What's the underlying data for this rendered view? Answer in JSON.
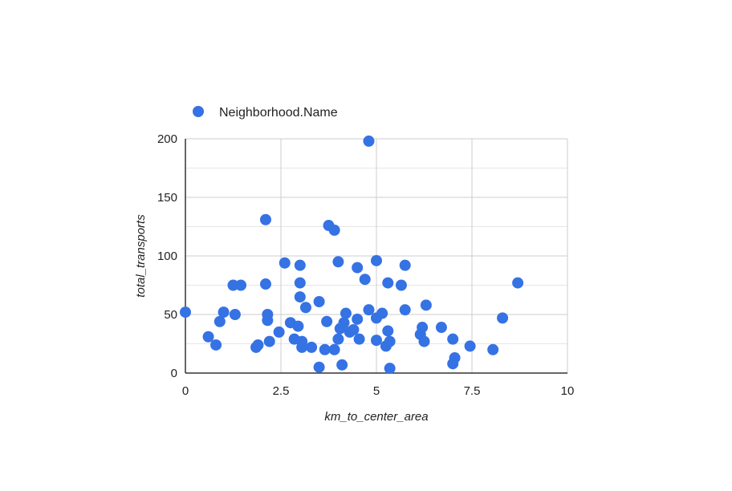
{
  "chart_data": {
    "type": "scatter",
    "xlabel": "km_to_center_area",
    "ylabel": "total_transports",
    "xlim": [
      0,
      10
    ],
    "ylim": [
      0,
      200
    ],
    "x_ticks": [
      0,
      2.5,
      5,
      7.5,
      10
    ],
    "x_tick_labels": [
      "0",
      "2.5",
      "5",
      "7.5",
      "10"
    ],
    "y_ticks": [
      0,
      50,
      100,
      150,
      200
    ],
    "y_tick_labels": [
      "0",
      "50",
      "100",
      "150",
      "200"
    ],
    "grid": true,
    "legend_position": "top-left",
    "series": [
      {
        "name": "Neighborhood.Name",
        "color": "#3572e4",
        "points": [
          [
            0.0,
            52
          ],
          [
            0.6,
            31
          ],
          [
            0.8,
            24
          ],
          [
            0.9,
            44
          ],
          [
            1.0,
            52
          ],
          [
            1.25,
            75
          ],
          [
            1.3,
            50
          ],
          [
            1.45,
            75
          ],
          [
            1.85,
            22
          ],
          [
            1.9,
            24
          ],
          [
            2.1,
            131
          ],
          [
            2.1,
            76
          ],
          [
            2.15,
            50
          ],
          [
            2.15,
            45
          ],
          [
            2.2,
            27
          ],
          [
            2.45,
            35
          ],
          [
            2.6,
            94
          ],
          [
            2.75,
            43
          ],
          [
            2.85,
            29
          ],
          [
            2.95,
            40
          ],
          [
            3.0,
            92
          ],
          [
            3.0,
            77
          ],
          [
            3.0,
            65
          ],
          [
            3.05,
            27
          ],
          [
            3.05,
            22
          ],
          [
            3.15,
            56
          ],
          [
            3.3,
            22
          ],
          [
            3.5,
            61
          ],
          [
            3.5,
            5
          ],
          [
            3.65,
            20
          ],
          [
            3.7,
            44
          ],
          [
            3.75,
            126
          ],
          [
            3.9,
            122
          ],
          [
            3.9,
            20
          ],
          [
            4.0,
            95
          ],
          [
            4.0,
            29
          ],
          [
            4.05,
            38
          ],
          [
            4.1,
            7
          ],
          [
            4.15,
            43
          ],
          [
            4.2,
            51
          ],
          [
            4.3,
            35
          ],
          [
            4.4,
            37
          ],
          [
            4.5,
            90
          ],
          [
            4.5,
            46
          ],
          [
            4.55,
            29
          ],
          [
            4.7,
            80
          ],
          [
            4.8,
            198
          ],
          [
            4.8,
            54
          ],
          [
            5.0,
            96
          ],
          [
            5.0,
            47
          ],
          [
            5.0,
            28
          ],
          [
            5.15,
            51
          ],
          [
            5.25,
            23
          ],
          [
            5.3,
            77
          ],
          [
            5.3,
            36
          ],
          [
            5.35,
            27
          ],
          [
            5.35,
            4
          ],
          [
            5.65,
            75
          ],
          [
            5.75,
            92
          ],
          [
            5.75,
            54
          ],
          [
            6.15,
            33
          ],
          [
            6.2,
            39
          ],
          [
            6.25,
            27
          ],
          [
            6.3,
            58
          ],
          [
            6.7,
            39
          ],
          [
            7.0,
            29
          ],
          [
            7.0,
            8
          ],
          [
            7.05,
            13
          ],
          [
            7.45,
            23
          ],
          [
            8.05,
            20
          ],
          [
            8.3,
            47
          ],
          [
            8.7,
            77
          ]
        ]
      }
    ]
  }
}
